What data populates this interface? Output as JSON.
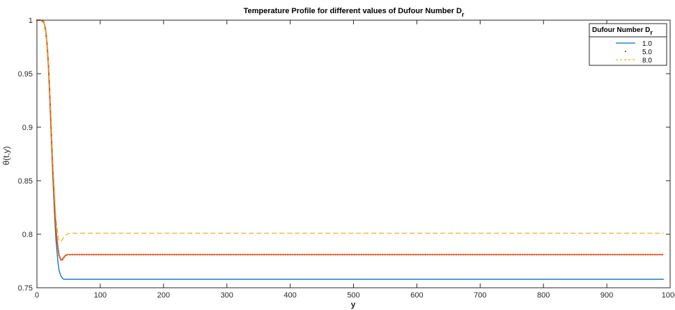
{
  "chart_data": {
    "type": "line",
    "title": "Temperature Profile for different values of Dufour Number D",
    "title_subscript": "r",
    "xlabel": "y",
    "ylabel": "θ(t,y)",
    "xlim": [
      0,
      1000
    ],
    "ylim": [
      0.75,
      1.0
    ],
    "xticks": [
      0,
      100,
      200,
      300,
      400,
      500,
      600,
      700,
      800,
      900,
      1000
    ],
    "yticks": [
      0.75,
      0.8,
      0.85,
      0.9,
      0.95,
      1.0
    ],
    "xtick_labels": [
      "0",
      "100",
      "200",
      "300",
      "400",
      "500",
      "600",
      "700",
      "800",
      "900",
      "1000"
    ],
    "ytick_labels": [
      "0.75",
      "0.8",
      "0.85",
      "0.9",
      "0.95",
      "1"
    ],
    "grid": false,
    "legend": {
      "title": "Dufour Number D",
      "title_subscript": "r",
      "placement": "top-right",
      "entries": [
        "1.0",
        "5.0",
        "8.0"
      ]
    },
    "series": [
      {
        "name": "1.0",
        "color": "#0072BD",
        "style": "solid",
        "x": [
          0,
          5,
          10,
          12,
          14,
          16,
          18,
          20,
          22,
          25,
          28,
          30,
          33,
          35,
          38,
          40,
          42,
          45,
          48,
          50,
          55,
          60,
          100,
          200,
          300,
          400,
          500,
          600,
          700,
          800,
          900,
          990
        ],
        "y": [
          1.0,
          1.0,
          0.999,
          0.996,
          0.99,
          0.978,
          0.958,
          0.93,
          0.9,
          0.855,
          0.815,
          0.795,
          0.775,
          0.766,
          0.761,
          0.759,
          0.758,
          0.758,
          0.758,
          0.758,
          0.758,
          0.758,
          0.758,
          0.758,
          0.758,
          0.758,
          0.758,
          0.758,
          0.758,
          0.758,
          0.758,
          0.758
        ]
      },
      {
        "name": "5.0",
        "color": "#D95319",
        "style": "dotted",
        "x": [
          0,
          5,
          10,
          12,
          14,
          16,
          18,
          20,
          22,
          25,
          28,
          30,
          33,
          35,
          38,
          40,
          42,
          45,
          48,
          50,
          55,
          60,
          100,
          200,
          300,
          400,
          500,
          600,
          700,
          800,
          900,
          990
        ],
        "y": [
          1.0,
          1.0,
          0.999,
          0.996,
          0.99,
          0.978,
          0.96,
          0.935,
          0.905,
          0.862,
          0.825,
          0.805,
          0.788,
          0.78,
          0.776,
          0.776,
          0.778,
          0.78,
          0.781,
          0.781,
          0.781,
          0.781,
          0.781,
          0.781,
          0.781,
          0.781,
          0.781,
          0.781,
          0.781,
          0.781,
          0.781,
          0.781
        ]
      },
      {
        "name": "8.0",
        "color": "#EDB120",
        "style": "dashed",
        "x": [
          0,
          5,
          10,
          12,
          14,
          16,
          18,
          20,
          22,
          25,
          28,
          30,
          33,
          35,
          38,
          40,
          42,
          45,
          48,
          50,
          55,
          60,
          100,
          200,
          300,
          400,
          500,
          600,
          700,
          800,
          900,
          990
        ],
        "y": [
          1.0,
          1.0,
          0.999,
          0.996,
          0.99,
          0.979,
          0.962,
          0.94,
          0.912,
          0.87,
          0.835,
          0.815,
          0.8,
          0.794,
          0.793,
          0.795,
          0.797,
          0.799,
          0.8,
          0.801,
          0.801,
          0.801,
          0.801,
          0.801,
          0.801,
          0.801,
          0.801,
          0.801,
          0.801,
          0.801,
          0.801,
          0.801
        ]
      }
    ]
  }
}
